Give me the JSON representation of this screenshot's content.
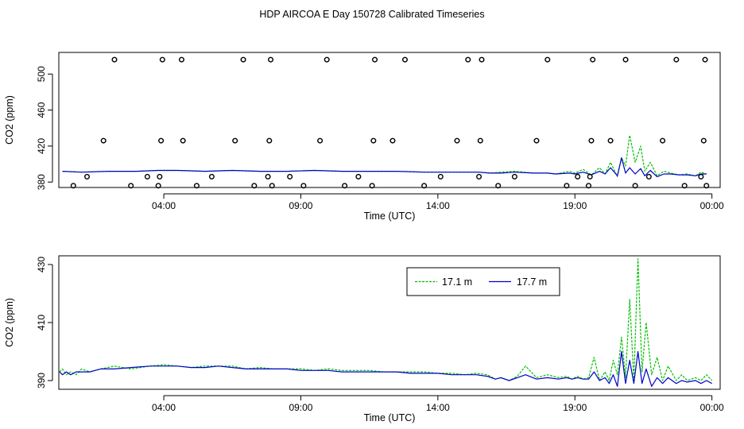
{
  "title": "HDP AIRCOA E  Day 150728  Calibrated Timeseries",
  "colors": {
    "series_171": "#00c000",
    "series_177": "#0000cc",
    "axis": "#000000",
    "markers": "#000000"
  },
  "chart_data": [
    {
      "type": "line",
      "name": "top-panel",
      "xlabel": "Time (UTC)",
      "ylabel": "CO2 (ppm)",
      "xlim": [
        0.17,
        24.3
      ],
      "ylim": [
        374,
        524
      ],
      "x_ticks": [
        4,
        9,
        14,
        19,
        24
      ],
      "x_tick_labels": [
        "04:00",
        "09:00",
        "14:00",
        "19:00",
        "00:00"
      ],
      "y_ticks": [
        380,
        420,
        460,
        500
      ],
      "y_tick_labels": [
        "380",
        "420",
        "460",
        "500"
      ],
      "series": [
        {
          "name": "17.1 m",
          "color": "#00c000",
          "x": [
            0.3,
            1.0,
            2.0,
            3.0,
            3.8,
            4.5,
            5.5,
            6.5,
            7.5,
            8.5,
            9.5,
            10.5,
            11.5,
            12.5,
            13.5,
            14.5,
            15.5,
            15.9,
            16.3,
            16.8,
            17.5,
            18.0,
            18.3,
            18.8,
            19.0,
            19.3,
            19.6,
            19.9,
            20.1,
            20.3,
            20.55,
            20.7,
            20.85,
            21.0,
            21.2,
            21.4,
            21.55,
            21.75,
            22.0,
            22.25,
            22.5,
            22.8,
            23.1,
            23.4,
            23.6,
            23.8
          ],
          "values": [
            392,
            391,
            392,
            392,
            393,
            393,
            392,
            393,
            392,
            392,
            393,
            392,
            392,
            392,
            391,
            391,
            391,
            390,
            391,
            392,
            390,
            390,
            389,
            392,
            390,
            394,
            388,
            396,
            389,
            402,
            386,
            407,
            398,
            432,
            402,
            420,
            392,
            402,
            387,
            392,
            390,
            388,
            389,
            387,
            391,
            389
          ]
        },
        {
          "name": "17.7 m",
          "color": "#0000cc",
          "x": [
            0.3,
            1.0,
            2.0,
            3.0,
            3.8,
            4.5,
            5.5,
            6.5,
            7.5,
            8.5,
            9.5,
            10.5,
            11.5,
            12.5,
            13.5,
            14.5,
            15.5,
            15.9,
            16.3,
            16.8,
            17.5,
            18.0,
            18.3,
            18.8,
            19.0,
            19.3,
            19.6,
            19.9,
            20.1,
            20.3,
            20.55,
            20.7,
            20.85,
            21.0,
            21.2,
            21.4,
            21.55,
            21.75,
            22.0,
            22.25,
            22.5,
            22.8,
            23.1,
            23.4,
            23.6,
            23.8
          ],
          "values": [
            392,
            391,
            392,
            392,
            393,
            393,
            392,
            393,
            392,
            392,
            393,
            392,
            392,
            392,
            391,
            391,
            391,
            390,
            390,
            391,
            390,
            390,
            389,
            390,
            389,
            391,
            388,
            392,
            389,
            396,
            387,
            407,
            390,
            396,
            389,
            395,
            387,
            393,
            386,
            389,
            389,
            388,
            388,
            387,
            389,
            389
          ]
        }
      ],
      "markers": {
        "shape": "circle",
        "x": [
          0.7,
          1.2,
          2.2,
          1.8,
          2.8,
          3.4,
          3.8,
          3.85,
          3.9,
          3.95,
          4.7,
          4.65,
          5.2,
          5.75,
          6.6,
          6.9,
          7.3,
          7.8,
          7.85,
          7.9,
          7.95,
          8.6,
          9.1,
          9.7,
          9.95,
          10.6,
          11.1,
          11.6,
          11.65,
          11.7,
          12.35,
          12.8,
          13.5,
          14.1,
          14.7,
          15.1,
          15.5,
          15.55,
          15.6,
          16.2,
          16.8,
          17.6,
          18.0,
          18.7,
          19.1,
          19.5,
          19.55,
          19.6,
          19.65,
          20.3,
          20.85,
          21.2,
          21.7,
          22.2,
          22.7,
          23.0,
          23.6,
          23.7,
          23.75,
          23.8
        ],
        "values": [
          376,
          386,
          516,
          426,
          376,
          386,
          376,
          386,
          426,
          516,
          426,
          516,
          376,
          386,
          426,
          516,
          376,
          386,
          426,
          516,
          376,
          386,
          376,
          426,
          516,
          376,
          386,
          376,
          426,
          516,
          426,
          516,
          376,
          386,
          426,
          516,
          386,
          426,
          516,
          376,
          386,
          426,
          516,
          376,
          386,
          376,
          386,
          426,
          516,
          426,
          516,
          376,
          386,
          426,
          516,
          376,
          386,
          426,
          516,
          376
        ]
      }
    },
    {
      "type": "line",
      "name": "bottom-panel",
      "xlabel": "Time (UTC)",
      "ylabel": "CO2 (ppm)",
      "xlim": [
        0.17,
        24.3
      ],
      "ylim": [
        387,
        433
      ],
      "x_ticks": [
        4,
        9,
        14,
        19,
        24
      ],
      "x_tick_labels": [
        "04:00",
        "09:00",
        "14:00",
        "19:00",
        "00:00"
      ],
      "y_ticks": [
        390,
        410,
        430
      ],
      "y_tick_labels": [
        "390",
        "410",
        "430"
      ],
      "legend": {
        "placement": "top-right",
        "entries": [
          "17.1 m",
          "17.7 m"
        ]
      },
      "series": [
        {
          "name": "17.1 m",
          "color": "#00c000",
          "x": [
            0.2,
            0.3,
            0.45,
            0.6,
            0.8,
            1.0,
            1.3,
            1.7,
            2.2,
            2.8,
            3.5,
            4.0,
            4.5,
            5.0,
            5.5,
            6.0,
            6.5,
            7.0,
            7.5,
            8.0,
            8.5,
            9.0,
            9.5,
            10.0,
            10.5,
            11.0,
            11.5,
            12.0,
            12.5,
            13.0,
            13.5,
            14.0,
            14.5,
            15.0,
            15.4,
            15.8,
            16.1,
            16.3,
            16.6,
            16.9,
            17.2,
            17.6,
            18.0,
            18.4,
            18.7,
            18.9,
            19.1,
            19.3,
            19.5,
            19.7,
            19.9,
            20.1,
            20.25,
            20.4,
            20.55,
            20.7,
            20.85,
            21.0,
            21.15,
            21.3,
            21.45,
            21.6,
            21.8,
            22.0,
            22.2,
            22.4,
            22.7,
            22.9,
            23.1,
            23.4,
            23.6,
            23.8,
            24.0
          ],
          "values": [
            393,
            394,
            392,
            393,
            392,
            394,
            393,
            394,
            395,
            394,
            395,
            395.5,
            395,
            394.5,
            395,
            395,
            395,
            394,
            394.5,
            394,
            394,
            394,
            393.5,
            394,
            393.5,
            393.5,
            393.5,
            393,
            393,
            393,
            393,
            392.5,
            392.5,
            392,
            392.5,
            392,
            390.5,
            391,
            390,
            391.5,
            395,
            391,
            392,
            391,
            391.5,
            390.5,
            391.5,
            390.5,
            391,
            398,
            390,
            393,
            390,
            397,
            392,
            405,
            391,
            418,
            390,
            432,
            393,
            410,
            392,
            398,
            390,
            395,
            390,
            392,
            390,
            391,
            390,
            392,
            390
          ]
        },
        {
          "name": "17.7 m",
          "color": "#0000cc",
          "x": [
            0.2,
            0.3,
            0.45,
            0.6,
            0.8,
            1.0,
            1.3,
            1.7,
            2.2,
            2.8,
            3.5,
            4.0,
            4.5,
            5.0,
            5.5,
            6.0,
            6.5,
            7.0,
            7.5,
            8.0,
            8.5,
            9.0,
            9.5,
            10.0,
            10.5,
            11.0,
            11.5,
            12.0,
            12.5,
            13.0,
            13.5,
            14.0,
            14.5,
            15.0,
            15.4,
            15.8,
            16.1,
            16.3,
            16.6,
            16.9,
            17.2,
            17.6,
            18.0,
            18.4,
            18.7,
            18.9,
            19.1,
            19.3,
            19.5,
            19.7,
            19.9,
            20.1,
            20.25,
            20.4,
            20.55,
            20.7,
            20.85,
            21.0,
            21.15,
            21.3,
            21.45,
            21.6,
            21.8,
            22.0,
            22.2,
            22.4,
            22.7,
            22.9,
            23.1,
            23.4,
            23.6,
            23.8,
            24.0
          ],
          "values": [
            393,
            392,
            393,
            392,
            393,
            393,
            393,
            394,
            394,
            394.5,
            395,
            395,
            395,
            394.5,
            394.5,
            395,
            394.5,
            394,
            394,
            394,
            394,
            393.5,
            393.5,
            393.5,
            393,
            393,
            393,
            393,
            393,
            392.5,
            392.5,
            392.5,
            392,
            392,
            392,
            391.5,
            390.5,
            391,
            390,
            391,
            392,
            390.5,
            391,
            390.5,
            391,
            390.5,
            391,
            390.5,
            390.5,
            393,
            390,
            391,
            389,
            392,
            388,
            400,
            389,
            397,
            389,
            400,
            389,
            394,
            388,
            391,
            389,
            391,
            389,
            390,
            389.5,
            390,
            389,
            390,
            389
          ]
        }
      ]
    }
  ]
}
